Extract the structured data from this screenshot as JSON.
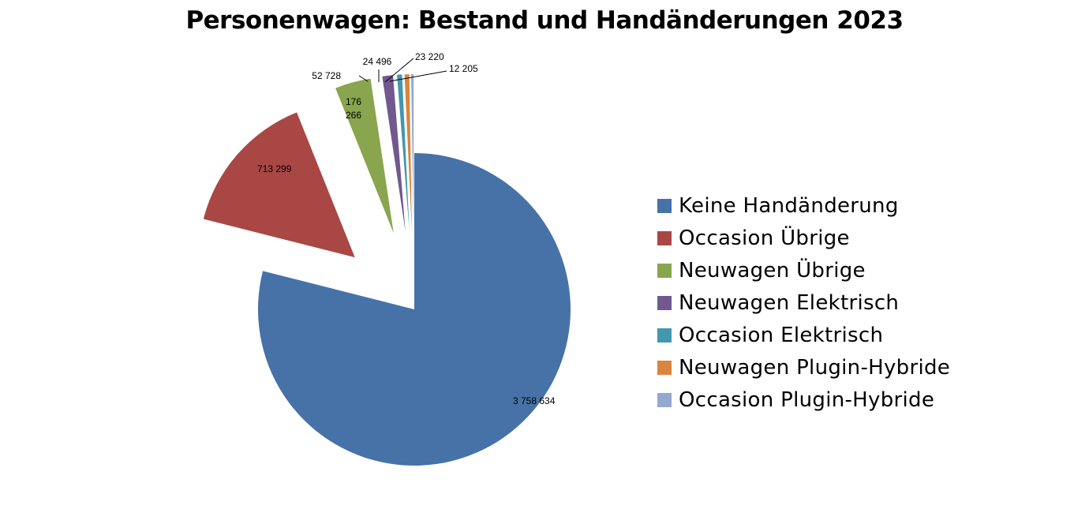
{
  "chart_data": {
    "type": "pie",
    "title": "Personenwagen: Bestand und Handänderungen 2023",
    "start_angle": "12 o'clock",
    "direction": "clockwise",
    "exploded": "all slices except Keine Handänderung",
    "legend_position": "right",
    "slices": [
      {
        "name": "Keine Handänderung",
        "value": 3758634,
        "label": "3 758 634",
        "color": "#4672A8"
      },
      {
        "name": "Occasion Übrige",
        "value": 713299,
        "label": "713 299",
        "color": "#A94744"
      },
      {
        "name": "Neuwagen Übrige",
        "value": 176266,
        "label": "176 266",
        "color": "#89A54E"
      },
      {
        "name": "Neuwagen Elektrisch",
        "value": 52728,
        "label": "52 728",
        "color": "#71588F"
      },
      {
        "name": "Occasion Elektrisch",
        "value": 24496,
        "label": "24 496",
        "color": "#4198AF"
      },
      {
        "name": "Neuwagen Plugin-Hybride",
        "value": 23220,
        "label": "23 220",
        "color": "#DB843D"
      },
      {
        "name": "Occasion Plugin-Hybride",
        "value": 12205,
        "label": "12 205",
        "color": "#93A9CF"
      }
    ]
  }
}
